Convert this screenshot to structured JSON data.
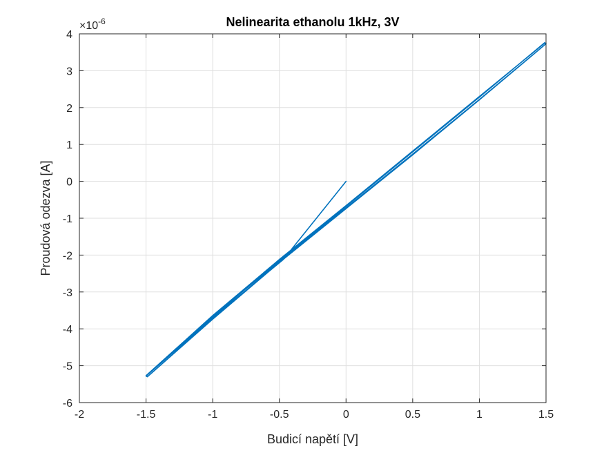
{
  "chart_data": {
    "type": "line",
    "title": "Nelinearita ethanolu 1kHz, 3V",
    "xlabel": "Budicí napětí [V]",
    "ylabel": "Proudová odezva [A]",
    "y_exponent_label": "×10",
    "y_exponent_power": "-6",
    "xlim": [
      -2,
      1.5
    ],
    "ylim": [
      -6,
      4
    ],
    "x_ticks": [
      -2,
      -1.5,
      -1,
      -0.5,
      0,
      0.5,
      1,
      1.5
    ],
    "x_tick_labels": [
      "-2",
      "-1.5",
      "-1",
      "-0.5",
      "0",
      "0.5",
      "1",
      "1.5"
    ],
    "y_ticks": [
      -6,
      -5,
      -4,
      -3,
      -2,
      -1,
      0,
      1,
      2,
      3,
      4
    ],
    "y_tick_labels": [
      "-6",
      "-5",
      "-4",
      "-3",
      "-2",
      "-1",
      "0",
      "1",
      "2",
      "3",
      "4"
    ],
    "grid": true,
    "color": "#0072BD",
    "series": [
      {
        "x": [
          0,
          -0.47,
          -1.0,
          -1.5,
          -1.49,
          -1.0,
          -0.5,
          0,
          0.5,
          1.0,
          1.5,
          1.49,
          1.0,
          0.5,
          0,
          -0.5,
          -1.0,
          -1.5,
          -1.49,
          -1.0,
          -0.5,
          0,
          0.5,
          1.0,
          1.5,
          1.49,
          1.0,
          0.5,
          0,
          -0.5,
          -1.0,
          -1.5
        ],
        "y": [
          0,
          -2.12,
          -3.7,
          -5.28,
          -5.3,
          -3.73,
          -2.18,
          -0.72,
          0.74,
          2.22,
          3.73,
          3.75,
          2.3,
          0.82,
          -0.66,
          -2.12,
          -3.64,
          -5.27,
          -5.3,
          -3.74,
          -2.2,
          -0.74,
          0.72,
          2.21,
          3.73,
          3.76,
          2.28,
          0.8,
          -0.68,
          -2.15,
          -3.67,
          -5.28
        ]
      }
    ]
  }
}
